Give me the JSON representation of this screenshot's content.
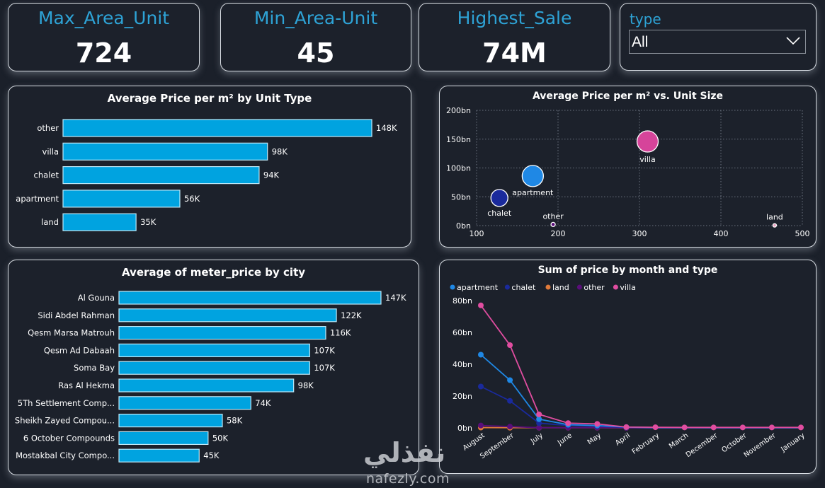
{
  "kpis": [
    {
      "title": "Max_Area_Unit",
      "value": "724"
    },
    {
      "title": "Min_Area-Unit",
      "value": "45"
    },
    {
      "title": "Highest_Sale",
      "value": "74M"
    }
  ],
  "slicer": {
    "title": "type",
    "selected": "All",
    "icon": "chevron-down-icon"
  },
  "watermark": {
    "arabic": "نفذلي",
    "latin": "nafezly.com"
  },
  "colors": {
    "bar": "#00a3e0",
    "apartment": "#1f88e5",
    "chalet": "#1a2a9c",
    "land": "#e07a3a",
    "other": "#5a0e7a",
    "villa": "#e04da0",
    "kpi_title": "#2ea3d6"
  },
  "chart_data": [
    {
      "type": "bar",
      "orientation": "horizontal",
      "title": "Average Price per m² by Unit Type",
      "categories": [
        "other",
        "villa",
        "chalet",
        "apartment",
        "land"
      ],
      "values": [
        148000,
        98000,
        94000,
        56000,
        35000
      ],
      "labels": [
        "148K",
        "98K",
        "94K",
        "56K",
        "35K"
      ],
      "xlabel": "",
      "ylabel": ""
    },
    {
      "type": "scatter",
      "title": "Average Price per m² vs. Unit Size",
      "xlim": [
        100,
        500
      ],
      "ylim": [
        0,
        200
      ],
      "x_ticks": [
        "100",
        "200",
        "300",
        "400",
        "500"
      ],
      "y_ticks": [
        "0bn",
        "50bn",
        "100bn",
        "150bn",
        "200bn"
      ],
      "grid": true,
      "points": [
        {
          "label": "chalet",
          "x": 128,
          "y": 48,
          "size": 0.6,
          "color": "#1a2a9c"
        },
        {
          "label": "apartment",
          "x": 169,
          "y": 86,
          "size": 0.75,
          "color": "#1f88e5"
        },
        {
          "label": "villa",
          "x": 310,
          "y": 146,
          "size": 0.75,
          "color": "#d6449a"
        },
        {
          "label": "other",
          "x": 194,
          "y": 2,
          "size": 0.15,
          "color": "#5a0e7a"
        },
        {
          "label": "land",
          "x": 466,
          "y": 0.5,
          "size": 0.08,
          "color": "#e8a0c0"
        }
      ]
    },
    {
      "type": "bar",
      "orientation": "horizontal",
      "title": "Average of meter_price by city",
      "categories": [
        "Al Gouna",
        "Sidi Abdel Rahman",
        "Qesm Marsa Matrouh",
        "Qesm Ad Dabaah",
        "Soma Bay",
        "Ras Al Hekma",
        "5Th Settlement Comp...",
        "Sheikh Zayed Compou...",
        "6 October Compounds",
        "Mostakbal City Compo..."
      ],
      "values": [
        147000,
        122000,
        116000,
        107000,
        107000,
        98000,
        74000,
        58000,
        50000,
        45000
      ],
      "labels": [
        "147K",
        "122K",
        "116K",
        "107K",
        "107K",
        "98K",
        "74K",
        "58K",
        "50K",
        "45K"
      ],
      "xlabel": "",
      "ylabel": ""
    },
    {
      "type": "line",
      "title": "Sum of price by month and type",
      "legend_position": "top-left",
      "categories": [
        "August",
        "September",
        "July",
        "June",
        "May",
        "April",
        "February",
        "March",
        "December",
        "October",
        "November",
        "January"
      ],
      "ylim": [
        0,
        80
      ],
      "y_ticks": [
        "0bn",
        "20bn",
        "40bn",
        "60bn",
        "80bn"
      ],
      "y_unit": "bn",
      "series": [
        {
          "name": "apartment",
          "color": "#1f88e5",
          "values": [
            46,
            30,
            5.5,
            2,
            1.5,
            0.5,
            0.2,
            0.2,
            0.1,
            0.1,
            0.1,
            0.1
          ]
        },
        {
          "name": "chalet",
          "color": "#1a2a9c",
          "values": [
            26,
            17,
            3,
            1.5,
            1,
            0.3,
            0.1,
            0.1,
            0.1,
            0.1,
            0.1,
            0.1
          ]
        },
        {
          "name": "land",
          "color": "#e07a3a",
          "values": [
            0.2,
            0.1,
            0.1,
            0.1,
            0.1,
            0,
            0,
            0,
            0,
            0,
            0,
            0
          ]
        },
        {
          "name": "other",
          "color": "#5a0e7a",
          "values": [
            1.5,
            0.8,
            0.1,
            0.1,
            0.1,
            0,
            0,
            0,
            0,
            0,
            0,
            0
          ]
        },
        {
          "name": "villa",
          "color": "#e04da0",
          "values": [
            77,
            52,
            8.5,
            3,
            2.5,
            0.5,
            0.4,
            0.3,
            0.3,
            0.3,
            0.3,
            0.3
          ]
        }
      ]
    }
  ]
}
